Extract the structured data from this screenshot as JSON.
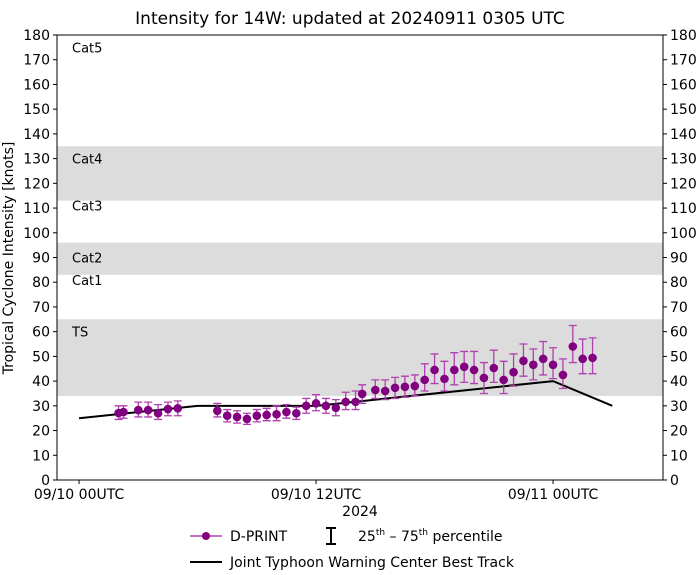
{
  "chart_data": {
    "type": "scatter",
    "title": "Intensity for 14W: updated at 20240911 0305 UTC",
    "xlabel": "2024",
    "ylabel": "Tropical Cyclone Intensity [knots]",
    "xlim": [
      "2024-09-09T22:53",
      "2024-09-11T05:34"
    ],
    "ylim": [
      0,
      180
    ],
    "yticks": [
      0,
      10,
      20,
      30,
      40,
      50,
      60,
      70,
      80,
      90,
      100,
      110,
      120,
      130,
      140,
      150,
      160,
      170,
      180
    ],
    "xticks": [
      {
        "t": "2024-09-10T00:00",
        "label": "09/10 00UTC"
      },
      {
        "t": "2024-09-10T12:00",
        "label": "09/10 12UTC"
      },
      {
        "t": "2024-09-11T00:00",
        "label": "09/11 00UTC"
      }
    ],
    "bands": [
      {
        "label": "Cat5",
        "range": [
          137,
          180
        ],
        "shaded": false,
        "label_y": 175
      },
      {
        "label": "Cat4",
        "range": [
          113,
          135
        ],
        "shaded": true,
        "label_y": 130
      },
      {
        "label": "Cat3",
        "range": [
          96,
          113
        ],
        "shaded": false,
        "label_y": 111
      },
      {
        "label": "Cat2",
        "range": [
          83,
          96
        ],
        "shaded": true,
        "label_y": 90
      },
      {
        "label": "Cat1",
        "range": [
          64,
          83
        ],
        "shaded": false,
        "label_y": 81
      },
      {
        "label": "TS",
        "range": [
          34,
          65
        ],
        "shaded": true,
        "label_y": 60
      }
    ],
    "colors": {
      "dprint": "#800080",
      "errorbar": "#b040b0",
      "best_track": "#000000",
      "band": "#dcdcdc"
    },
    "series": [
      {
        "name": "D-PRINT",
        "kind": "points-with-errorbars",
        "points": [
          [
            "2024-09-10T02:00",
            27.1,
            24.5,
            30
          ],
          [
            "2024-09-10T02:15",
            27.5,
            25,
            30
          ],
          [
            "2024-09-10T03:00",
            28.3,
            25.5,
            31.5
          ],
          [
            "2024-09-10T03:30",
            28.3,
            25.5,
            31.5
          ],
          [
            "2024-09-10T04:00",
            27,
            24.5,
            30.5
          ],
          [
            "2024-09-10T04:30",
            28.7,
            26,
            31.5
          ],
          [
            "2024-09-10T05:00",
            29,
            26,
            32
          ],
          [
            "2024-09-10T07:00",
            28,
            25.5,
            31
          ],
          [
            "2024-09-10T07:30",
            26,
            23.5,
            28.5
          ],
          [
            "2024-09-10T08:00",
            25.5,
            23,
            28
          ],
          [
            "2024-09-10T08:30",
            24.7,
            22.5,
            27
          ],
          [
            "2024-09-10T09:00",
            26,
            23.5,
            28.5
          ],
          [
            "2024-09-10T09:30",
            26.3,
            24,
            29
          ],
          [
            "2024-09-10T10:00",
            26.6,
            24,
            30
          ],
          [
            "2024-09-10T10:30",
            27.5,
            25,
            30.5
          ],
          [
            "2024-09-10T11:00",
            27,
            24.5,
            29.5
          ],
          [
            "2024-09-10T11:30",
            30,
            27,
            33
          ],
          [
            "2024-09-10T12:00",
            31,
            28,
            34.5
          ],
          [
            "2024-09-10T12:30",
            30,
            27,
            33
          ],
          [
            "2024-09-10T13:00",
            29.2,
            26,
            32.5
          ],
          [
            "2024-09-10T13:30",
            31.6,
            28.5,
            35.5
          ],
          [
            "2024-09-10T14:00",
            31.6,
            28.5,
            36
          ],
          [
            "2024-09-10T14:20",
            34.8,
            31,
            38.5
          ],
          [
            "2024-09-10T15:00",
            36.4,
            33,
            40.5
          ],
          [
            "2024-09-10T15:30",
            36,
            32.5,
            40.5
          ],
          [
            "2024-09-10T16:00",
            37.3,
            33,
            41.5
          ],
          [
            "2024-09-10T16:30",
            37.7,
            33.5,
            42
          ],
          [
            "2024-09-10T17:00",
            38,
            34,
            42.5
          ],
          [
            "2024-09-10T17:30",
            40.5,
            36,
            47
          ],
          [
            "2024-09-10T18:00",
            44.5,
            39,
            51
          ],
          [
            "2024-09-10T18:30",
            40.9,
            36,
            48
          ],
          [
            "2024-09-10T19:00",
            44.5,
            38.5,
            51.5
          ],
          [
            "2024-09-10T19:30",
            45.8,
            39.5,
            52
          ],
          [
            "2024-09-10T20:00",
            44.5,
            39,
            52
          ],
          [
            "2024-09-10T20:30",
            41.3,
            35,
            47.5
          ],
          [
            "2024-09-10T21:00",
            45.3,
            39.5,
            52.5
          ],
          [
            "2024-09-10T21:30",
            40.5,
            35,
            48
          ],
          [
            "2024-09-10T22:00",
            43.6,
            38,
            51
          ],
          [
            "2024-09-10T22:30",
            48.2,
            42,
            55
          ],
          [
            "2024-09-10T23:00",
            46.6,
            40.5,
            53
          ],
          [
            "2024-09-10T23:30",
            49,
            42.5,
            56
          ],
          [
            "2024-09-11T00:00",
            46.6,
            41,
            53.5
          ],
          [
            "2024-09-11T00:30",
            42.5,
            37,
            49
          ],
          [
            "2024-09-11T01:00",
            54,
            47.5,
            62.5
          ],
          [
            "2024-09-11T01:30",
            49,
            43,
            57
          ],
          [
            "2024-09-11T02:00",
            49.4,
            43,
            57.5
          ]
        ]
      },
      {
        "name": "Joint Typhoon Warning Center Best Track",
        "kind": "line",
        "points": [
          [
            "2024-09-10T00:00",
            25
          ],
          [
            "2024-09-10T06:00",
            30
          ],
          [
            "2024-09-10T12:00",
            30
          ],
          [
            "2024-09-11T00:00",
            40
          ],
          [
            "2024-09-11T03:00",
            30
          ]
        ]
      }
    ],
    "legend": {
      "placement": "bottom",
      "dprint": "D-PRINT",
      "percentile_prefix": "25",
      "percentile_mid": "th",
      "percentile_dash": " – 75",
      "percentile_sup2": "th",
      "percentile_suffix": " percentile",
      "best_track": "Joint Typhoon Warning Center Best Track"
    }
  }
}
